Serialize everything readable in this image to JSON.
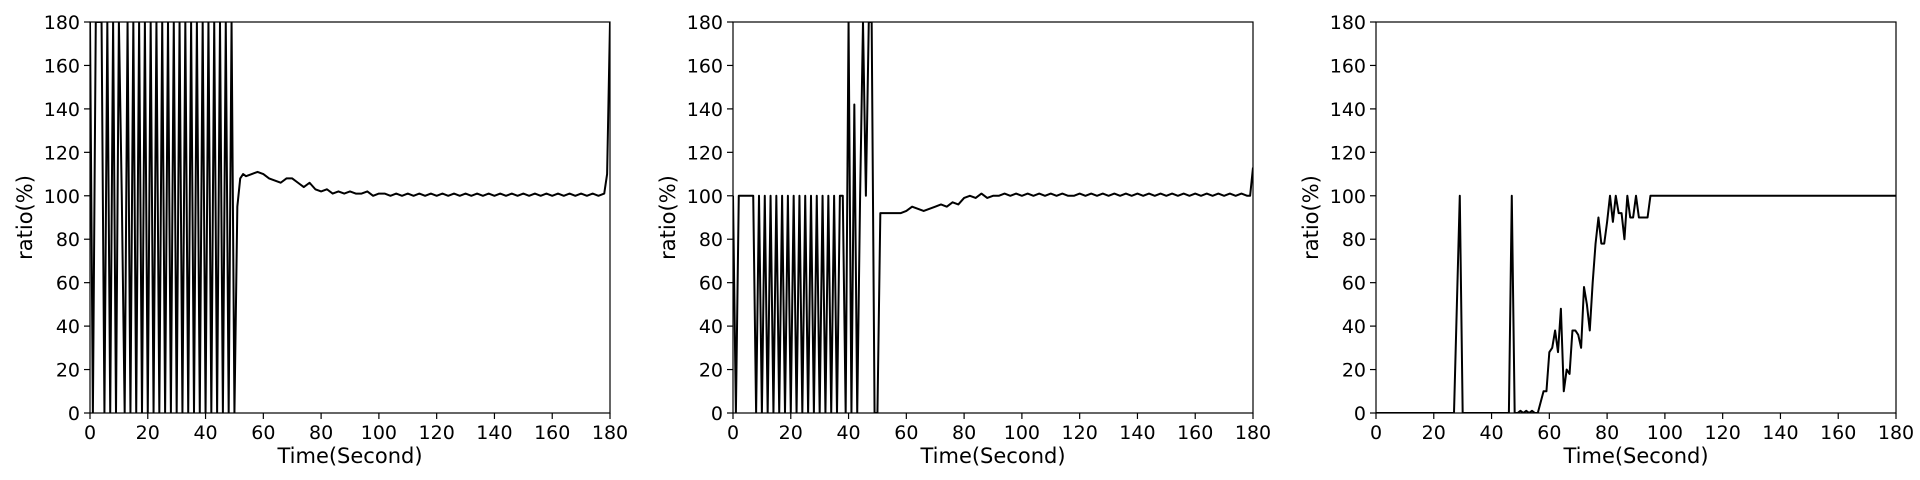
{
  "chart_data": [
    {
      "type": "line",
      "xlabel": "Time(Second)",
      "ylabel": "ratio(%)",
      "xlim": [
        0,
        180
      ],
      "ylim": [
        0,
        180
      ],
      "xticks": [
        0,
        20,
        40,
        60,
        80,
        100,
        120,
        140,
        160,
        180
      ],
      "yticks": [
        0,
        20,
        40,
        60,
        80,
        100,
        120,
        140,
        160,
        180
      ],
      "grid": false,
      "series": [
        {
          "x": [
            0,
            1,
            2,
            3,
            4,
            5,
            6,
            7,
            8,
            9,
            10,
            11,
            12,
            13,
            14,
            15,
            16,
            17,
            18,
            19,
            20,
            21,
            22,
            23,
            24,
            25,
            26,
            27,
            28,
            29,
            30,
            31,
            32,
            33,
            34,
            35,
            36,
            37,
            38,
            39,
            40,
            41,
            42,
            43,
            44,
            45,
            46,
            47,
            48,
            49,
            50,
            51,
            52,
            53,
            54,
            56,
            58,
            60,
            62,
            64,
            66,
            68,
            70,
            72,
            74,
            76,
            78,
            80,
            82,
            84,
            86,
            88,
            90,
            92,
            94,
            96,
            98,
            100,
            102,
            104,
            106,
            108,
            110,
            112,
            114,
            116,
            118,
            120,
            122,
            124,
            126,
            128,
            130,
            132,
            134,
            136,
            138,
            140,
            142,
            144,
            146,
            148,
            150,
            152,
            154,
            156,
            158,
            160,
            162,
            164,
            166,
            168,
            170,
            172,
            174,
            176,
            178,
            179,
            180
          ],
          "y": [
            180,
            0,
            180,
            180,
            180,
            0,
            180,
            0,
            180,
            0,
            180,
            100,
            0,
            180,
            0,
            180,
            0,
            180,
            0,
            180,
            0,
            180,
            0,
            180,
            0,
            180,
            0,
            180,
            0,
            180,
            0,
            180,
            0,
            180,
            0,
            180,
            0,
            180,
            0,
            180,
            0,
            180,
            0,
            180,
            0,
            180,
            0,
            180,
            0,
            180,
            0,
            95,
            108,
            110,
            109,
            110,
            111,
            110,
            108,
            107,
            106,
            108,
            108,
            106,
            104,
            106,
            103,
            102,
            103,
            101,
            102,
            101,
            102,
            101,
            101,
            102,
            100,
            101,
            101,
            100,
            101,
            100,
            101,
            100,
            101,
            100,
            101,
            100,
            101,
            100,
            101,
            100,
            101,
            100,
            101,
            100,
            101,
            100,
            101,
            100,
            101,
            100,
            101,
            100,
            101,
            100,
            101,
            100,
            101,
            100,
            101,
            100,
            101,
            100,
            101,
            100,
            101,
            110,
            180
          ]
        }
      ]
    },
    {
      "type": "line",
      "xlabel": "Time(Second)",
      "ylabel": "ratio(%)",
      "xlim": [
        0,
        180
      ],
      "ylim": [
        0,
        180
      ],
      "xticks": [
        0,
        20,
        40,
        60,
        80,
        100,
        120,
        140,
        160,
        180
      ],
      "yticks": [
        0,
        20,
        40,
        60,
        80,
        100,
        120,
        140,
        160,
        180
      ],
      "grid": false,
      "series": [
        {
          "x": [
            0,
            1,
            2,
            3,
            5,
            7,
            8,
            9,
            10,
            11,
            12,
            13,
            14,
            15,
            16,
            17,
            18,
            19,
            20,
            21,
            22,
            23,
            24,
            25,
            26,
            27,
            28,
            29,
            30,
            31,
            32,
            33,
            34,
            35,
            36,
            37,
            38,
            39,
            40,
            41,
            42,
            43,
            44,
            45,
            46,
            47,
            48,
            49,
            50,
            51,
            52,
            54,
            56,
            58,
            60,
            62,
            64,
            66,
            68,
            70,
            72,
            74,
            76,
            78,
            80,
            82,
            84,
            86,
            88,
            90,
            92,
            94,
            96,
            98,
            100,
            102,
            104,
            106,
            108,
            110,
            112,
            114,
            116,
            118,
            120,
            122,
            124,
            126,
            128,
            130,
            132,
            134,
            136,
            138,
            140,
            142,
            144,
            146,
            148,
            150,
            152,
            154,
            156,
            158,
            160,
            162,
            164,
            166,
            168,
            170,
            172,
            174,
            176,
            178,
            179,
            180
          ],
          "y": [
            100,
            0,
            100,
            100,
            100,
            100,
            0,
            100,
            0,
            100,
            0,
            100,
            0,
            100,
            0,
            100,
            0,
            100,
            0,
            100,
            0,
            100,
            0,
            100,
            0,
            100,
            0,
            100,
            0,
            100,
            0,
            100,
            0,
            100,
            0,
            100,
            100,
            0,
            180,
            0,
            142,
            0,
            100,
            180,
            100,
            180,
            180,
            0,
            0,
            92,
            92,
            92,
            92,
            92,
            93,
            95,
            94,
            93,
            94,
            95,
            96,
            95,
            97,
            96,
            99,
            100,
            99,
            101,
            99,
            100,
            100,
            101,
            100,
            101,
            100,
            101,
            100,
            101,
            100,
            101,
            100,
            101,
            100,
            100,
            101,
            100,
            101,
            100,
            101,
            100,
            101,
            100,
            101,
            100,
            101,
            100,
            101,
            100,
            101,
            100,
            101,
            100,
            101,
            100,
            101,
            100,
            101,
            100,
            101,
            100,
            101,
            100,
            101,
            100,
            100,
            113
          ]
        }
      ]
    },
    {
      "type": "line",
      "xlabel": "Time(Second)",
      "ylabel": "ratio(%)",
      "xlim": [
        0,
        180
      ],
      "ylim": [
        0,
        180
      ],
      "xticks": [
        0,
        20,
        40,
        60,
        80,
        100,
        120,
        140,
        160,
        180
      ],
      "yticks": [
        0,
        20,
        40,
        60,
        80,
        100,
        120,
        140,
        160,
        180
      ],
      "grid": false,
      "series": [
        {
          "x": [
            0,
            27,
            28,
            29,
            30,
            46,
            47,
            48,
            49,
            50,
            51,
            52,
            53,
            54,
            55,
            56,
            57,
            58,
            59,
            60,
            61,
            62,
            63,
            64,
            65,
            66,
            67,
            68,
            69,
            70,
            71,
            72,
            73,
            74,
            75,
            76,
            77,
            78,
            79,
            80,
            81,
            82,
            83,
            84,
            85,
            86,
            87,
            88,
            89,
            90,
            91,
            92,
            93,
            94,
            95,
            100,
            120,
            140,
            160,
            180
          ],
          "y": [
            0,
            0,
            50,
            100,
            0,
            0,
            100,
            0,
            0,
            1,
            0,
            1,
            0,
            1,
            0,
            0,
            5,
            10,
            10,
            28,
            30,
            38,
            28,
            48,
            10,
            20,
            18,
            38,
            38,
            36,
            30,
            58,
            50,
            38,
            60,
            78,
            90,
            78,
            78,
            88,
            100,
            88,
            100,
            92,
            92,
            80,
            100,
            90,
            90,
            100,
            90,
            90,
            90,
            90,
            100,
            100,
            100,
            100,
            100,
            100
          ]
        }
      ]
    }
  ]
}
